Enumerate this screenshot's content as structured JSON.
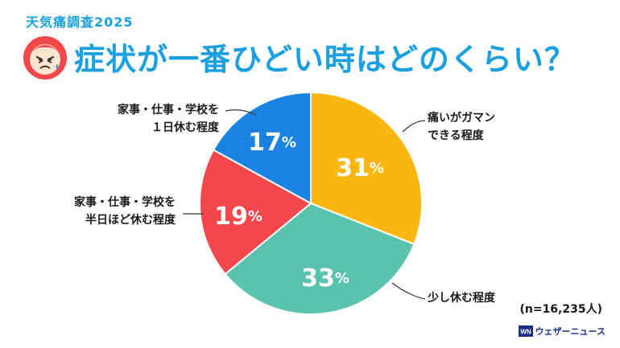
{
  "header": {
    "subtitle": "天気痛調査2025",
    "title": "症状が一番ひどい時はどのくらい？"
  },
  "chart_data": {
    "type": "pie",
    "slices": [
      {
        "label_lines": [
          "痛いがガマン",
          "できる程度"
        ],
        "value": 31,
        "display": "31%",
        "color": "#fbb710"
      },
      {
        "label_lines": [
          "少し休む程度"
        ],
        "value": 33,
        "display": "33%",
        "color": "#5ac2ad"
      },
      {
        "label_lines": [
          "家事・仕事・学校を",
          "半日ほど休む程度"
        ],
        "value": 19,
        "display": "19%",
        "color": "#f4474c"
      },
      {
        "label_lines": [
          "家事・仕事・学校を",
          "１日休む程度"
        ],
        "value": 17,
        "display": "17%",
        "color": "#1a83e2"
      }
    ],
    "start": "12 o'clock",
    "direction": "clockwise"
  },
  "footer": {
    "sample_note": "(n=16,235人)",
    "brand": "ウェザーニュース"
  },
  "colors": {
    "title": "#1aa0e0",
    "face": "#f4474c",
    "brand": "#1b2f86"
  },
  "icons": {
    "face": "pained-face-icon",
    "brand": "weathernews-logo-icon"
  }
}
